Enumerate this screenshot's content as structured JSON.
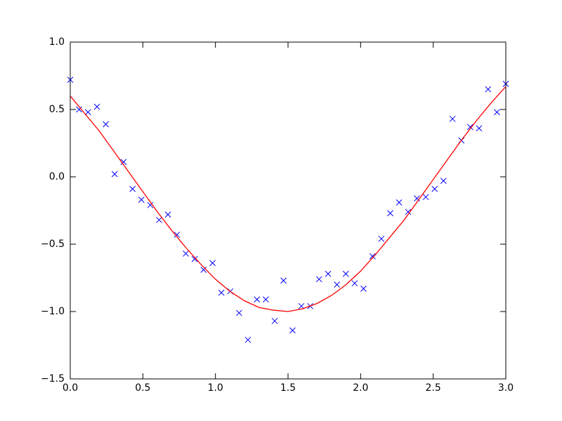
{
  "chart_data": {
    "type": "scatter",
    "xlim": [
      0,
      3
    ],
    "ylim": [
      -1.5,
      1
    ],
    "xticks": [
      {
        "value": 0,
        "label": "0.0"
      },
      {
        "value": 0.5,
        "label": "0.5"
      },
      {
        "value": 1,
        "label": "1.0"
      },
      {
        "value": 1.5,
        "label": "1.5"
      },
      {
        "value": 2,
        "label": "2.0"
      },
      {
        "value": 2.5,
        "label": "2.5"
      },
      {
        "value": 3,
        "label": "3.0"
      }
    ],
    "yticks": [
      {
        "value": -1.5,
        "label": "−1.5"
      },
      {
        "value": -1,
        "label": "−1.0"
      },
      {
        "value": -0.5,
        "label": "−0.5"
      },
      {
        "value": 0,
        "label": "0.0"
      },
      {
        "value": 0.5,
        "label": "0.5"
      },
      {
        "value": 1,
        "label": "1.0"
      }
    ],
    "series": [
      {
        "type": "scatter",
        "marker": "x",
        "color": "#0000ff",
        "x": [
          0,
          0.061,
          0.122,
          0.184,
          0.245,
          0.306,
          0.367,
          0.429,
          0.49,
          0.551,
          0.612,
          0.673,
          0.735,
          0.796,
          0.857,
          0.918,
          0.98,
          1.041,
          1.102,
          1.163,
          1.224,
          1.286,
          1.347,
          1.408,
          1.469,
          1.531,
          1.592,
          1.653,
          1.714,
          1.776,
          1.837,
          1.898,
          1.959,
          2.02,
          2.082,
          2.143,
          2.204,
          2.265,
          2.327,
          2.388,
          2.449,
          2.51,
          2.571,
          2.633,
          2.694,
          2.755,
          2.816,
          2.878,
          2.939,
          3.0
        ],
        "values": [
          0.72,
          0.5,
          0.48,
          0.52,
          0.39,
          0.02,
          0.11,
          -0.09,
          -0.17,
          -0.21,
          -0.32,
          -0.28,
          -0.43,
          -0.57,
          -0.61,
          -0.69,
          -0.64,
          -0.86,
          -0.85,
          -1.01,
          -1.21,
          -0.91,
          -0.91,
          -1.07,
          -0.77,
          -1.14,
          -0.96,
          -0.96,
          -0.76,
          -0.72,
          -0.8,
          -0.72,
          -0.79,
          -0.83,
          -0.59,
          -0.46,
          -0.27,
          -0.19,
          -0.26,
          -0.16,
          -0.15,
          -0.09,
          -0.03,
          0.43,
          0.27,
          0.37,
          0.36,
          0.65,
          0.48,
          0.69
        ]
      },
      {
        "type": "line",
        "color": "#ff0000",
        "x": [
          0,
          0.1,
          0.2,
          0.3,
          0.4,
          0.5,
          0.6,
          0.7,
          0.8,
          0.9,
          1.0,
          1.1,
          1.2,
          1.3,
          1.4,
          1.5,
          1.6,
          1.7,
          1.8,
          1.9,
          2.0,
          2.1,
          2.2,
          2.3,
          2.4,
          2.5,
          2.6,
          2.7,
          2.8,
          2.9,
          3.0
        ],
        "values": [
          0.6,
          0.47,
          0.34,
          0.19,
          0.04,
          -0.11,
          -0.26,
          -0.4,
          -0.53,
          -0.65,
          -0.76,
          -0.85,
          -0.92,
          -0.97,
          -0.99,
          -1.0,
          -0.98,
          -0.94,
          -0.88,
          -0.8,
          -0.7,
          -0.58,
          -0.45,
          -0.32,
          -0.17,
          -0.02,
          0.13,
          0.28,
          0.42,
          0.55,
          0.67
        ]
      }
    ]
  }
}
